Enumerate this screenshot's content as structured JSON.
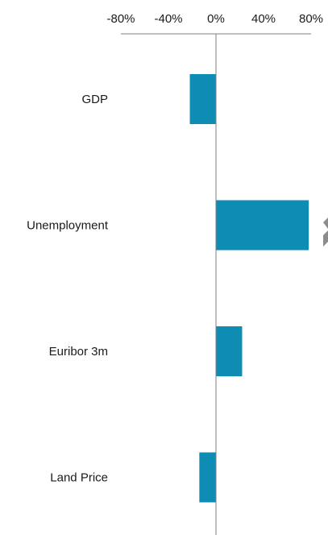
{
  "chart_data": {
    "type": "bar",
    "orientation": "horizontal",
    "categories": [
      "GDP",
      "Unemployment",
      "Euribor 3m",
      "Land Price"
    ],
    "values": [
      -22,
      78,
      22,
      -14
    ],
    "value_unit": "%",
    "xlim": [
      -80,
      80
    ],
    "x_ticks": [
      -80,
      -40,
      0,
      40,
      80
    ],
    "x_tick_labels": [
      "-80%",
      "-40%",
      "0%",
      "40%",
      "80%"
    ],
    "axis_position": "top",
    "grid": false,
    "legend": "none",
    "bar_color": "#0f8cb4",
    "axis_color": "#7f7f7f",
    "title": "",
    "xlabel": "",
    "ylabel": ""
  }
}
